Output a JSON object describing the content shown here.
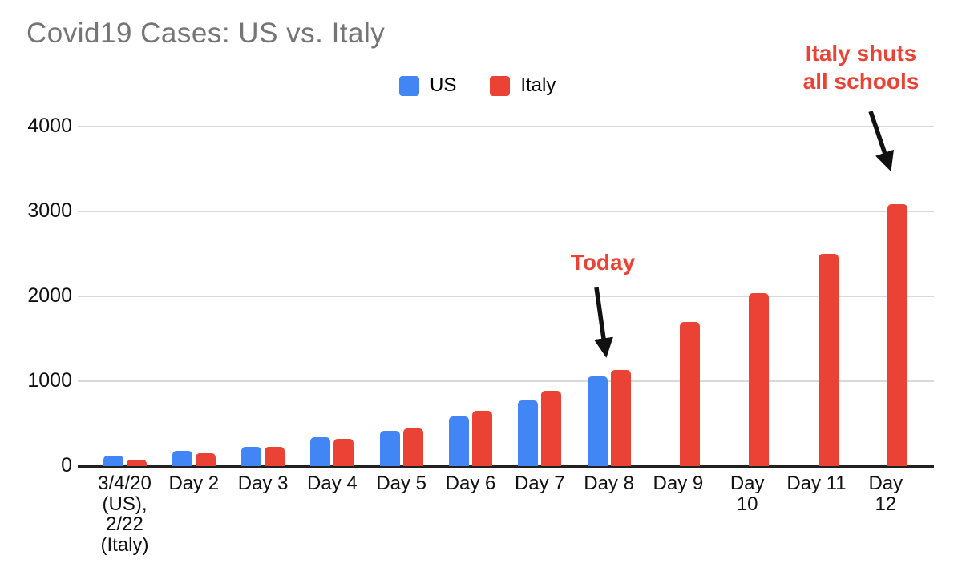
{
  "title": "Covid19 Cases: US vs. Italy",
  "colors": {
    "background": "#ffffff",
    "title_text": "#757575",
    "axis_text": "#111111",
    "gridline": "#d9d9d9",
    "baseline": "#212121",
    "annotation_text": "#ea4335",
    "arrow": "#111111",
    "us_series": "#4285f4",
    "italy_series": "#ea4335"
  },
  "legend": {
    "position": "top-center",
    "items": [
      {
        "label": "US",
        "color": "#4285f4"
      },
      {
        "label": "Italy",
        "color": "#ea4335"
      }
    ]
  },
  "chart_data": {
    "type": "bar",
    "title": "Covid19 Cases: US vs. Italy",
    "xlabel": "",
    "ylabel": "",
    "ylim": [
      0,
      4000
    ],
    "yticks": [
      0,
      1000,
      2000,
      3000,
      4000
    ],
    "grid": "horizontal",
    "legend_position": "top-center",
    "categories": [
      "3/4/20 (US), 2/22 (Italy)",
      "Day 2",
      "Day 3",
      "Day 4",
      "Day 5",
      "Day 6",
      "Day 7",
      "Day 8",
      "Day 9",
      "Day 10",
      "Day 11",
      "Day 12"
    ],
    "category_label_lines": [
      [
        "3/4/20",
        "(US),",
        "2/22",
        "(Italy)"
      ],
      [
        "Day 2"
      ],
      [
        "Day 3"
      ],
      [
        "Day 4"
      ],
      [
        "Day 5"
      ],
      [
        "Day 6"
      ],
      [
        "Day 7"
      ],
      [
        "Day 8"
      ],
      [
        "Day 9"
      ],
      [
        "Day",
        "10"
      ],
      [
        "Day 11"
      ],
      [
        "Day",
        "12"
      ]
    ],
    "series": [
      {
        "name": "US",
        "color": "#4285f4",
        "values": [
          118,
          176,
          223,
          341,
          417,
          584,
          778,
          1054,
          null,
          null,
          null,
          null
        ]
      },
      {
        "name": "Italy",
        "color": "#ea4335",
        "values": [
          79,
          155,
          229,
          322,
          445,
          650,
          888,
          1128,
          1694,
          2036,
          2502,
          3089
        ]
      }
    ],
    "annotations": {
      "today": {
        "text": "Today",
        "points_to": "Day 8"
      },
      "italy_schools": {
        "text": "Italy shuts all schools",
        "lines": [
          "Italy shuts",
          "all schools"
        ],
        "points_to": "Day 12"
      }
    }
  }
}
